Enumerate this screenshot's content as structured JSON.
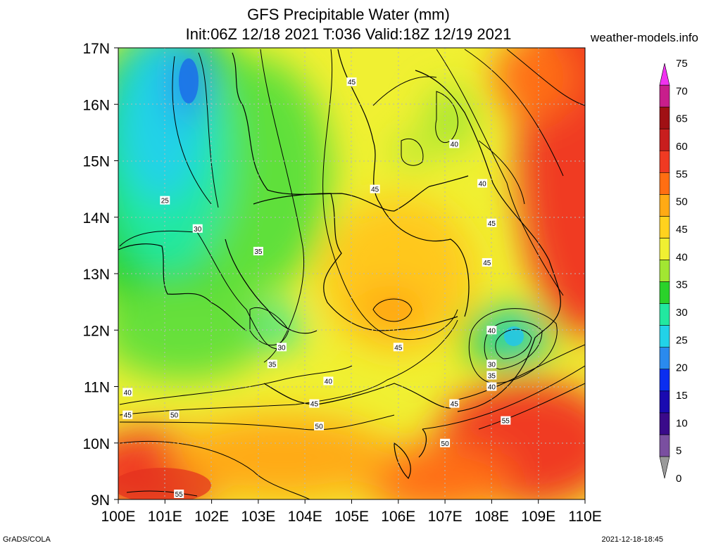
{
  "header": {
    "title_line1": "GFS Precipitable Water (mm)",
    "title_line2": "Init:06Z 12/18 2021 T:036 Valid:18Z 12/19 2021",
    "site": "weather-models.info"
  },
  "footer": {
    "left": "GrADS/COLA",
    "right": "2021-12-18-18:45"
  },
  "chart_data": {
    "type": "heatmap",
    "title": "GFS Precipitable Water (mm)",
    "x_ticks": [
      "100E",
      "101E",
      "102E",
      "103E",
      "104E",
      "105E",
      "106E",
      "107E",
      "108E",
      "109E",
      "110E"
    ],
    "y_ticks": [
      "17N",
      "16N",
      "15N",
      "14N",
      "13N",
      "12N",
      "11N",
      "10N",
      "9N"
    ],
    "xlim": [
      100,
      110
    ],
    "ylim": [
      9,
      17
    ],
    "grid": true,
    "colorbar": {
      "labels": [
        "75",
        "70",
        "65",
        "60",
        "55",
        "50",
        "45",
        "40",
        "35",
        "30",
        "25",
        "20",
        "15",
        "10",
        "5",
        "0"
      ],
      "levels": [
        0,
        5,
        10,
        15,
        20,
        25,
        30,
        35,
        40,
        45,
        50,
        55,
        60,
        65,
        70,
        75
      ],
      "colors": [
        "#9a9a9a",
        "#7a4fa0",
        "#3a0a8a",
        "#1a0ab0",
        "#0a2ef0",
        "#2a8aee",
        "#22d2e8",
        "#22e8a0",
        "#2ad22a",
        "#a2e632",
        "#f0f032",
        "#ffd21e",
        "#ffaa14",
        "#ff6e12",
        "#f03a22",
        "#c81e1e",
        "#a01014",
        "#c81e8c",
        "#f032f0"
      ]
    },
    "contour_labels": [
      {
        "text": "45",
        "lon": 105.0,
        "lat": 16.4
      },
      {
        "text": "40",
        "lon": 107.2,
        "lat": 15.3
      },
      {
        "text": "40",
        "lon": 107.8,
        "lat": 14.6
      },
      {
        "text": "45",
        "lon": 105.5,
        "lat": 14.5
      },
      {
        "text": "25",
        "lon": 101.0,
        "lat": 14.3
      },
      {
        "text": "30",
        "lon": 101.7,
        "lat": 13.8
      },
      {
        "text": "45",
        "lon": 108.0,
        "lat": 13.9
      },
      {
        "text": "35",
        "lon": 103.0,
        "lat": 13.4
      },
      {
        "text": "45",
        "lon": 107.9,
        "lat": 13.2
      },
      {
        "text": "40",
        "lon": 108.0,
        "lat": 12.0
      },
      {
        "text": "30",
        "lon": 103.5,
        "lat": 11.7
      },
      {
        "text": "35",
        "lon": 103.3,
        "lat": 11.4
      },
      {
        "text": "45",
        "lon": 106.0,
        "lat": 11.7
      },
      {
        "text": "30",
        "lon": 108.0,
        "lat": 11.4
      },
      {
        "text": "35",
        "lon": 108.0,
        "lat": 11.2
      },
      {
        "text": "40",
        "lon": 108.0,
        "lat": 11.0
      },
      {
        "text": "40",
        "lon": 104.5,
        "lat": 11.1
      },
      {
        "text": "40",
        "lon": 100.2,
        "lat": 10.9
      },
      {
        "text": "45",
        "lon": 100.2,
        "lat": 10.5
      },
      {
        "text": "50",
        "lon": 101.2,
        "lat": 10.5
      },
      {
        "text": "45",
        "lon": 104.2,
        "lat": 10.7
      },
      {
        "text": "45",
        "lon": 107.2,
        "lat": 10.7
      },
      {
        "text": "50",
        "lon": 104.3,
        "lat": 10.3
      },
      {
        "text": "55",
        "lon": 108.3,
        "lat": 10.4
      },
      {
        "text": "50",
        "lon": 107.0,
        "lat": 10.0
      },
      {
        "text": "55",
        "lon": 101.3,
        "lat": 9.1
      }
    ]
  }
}
